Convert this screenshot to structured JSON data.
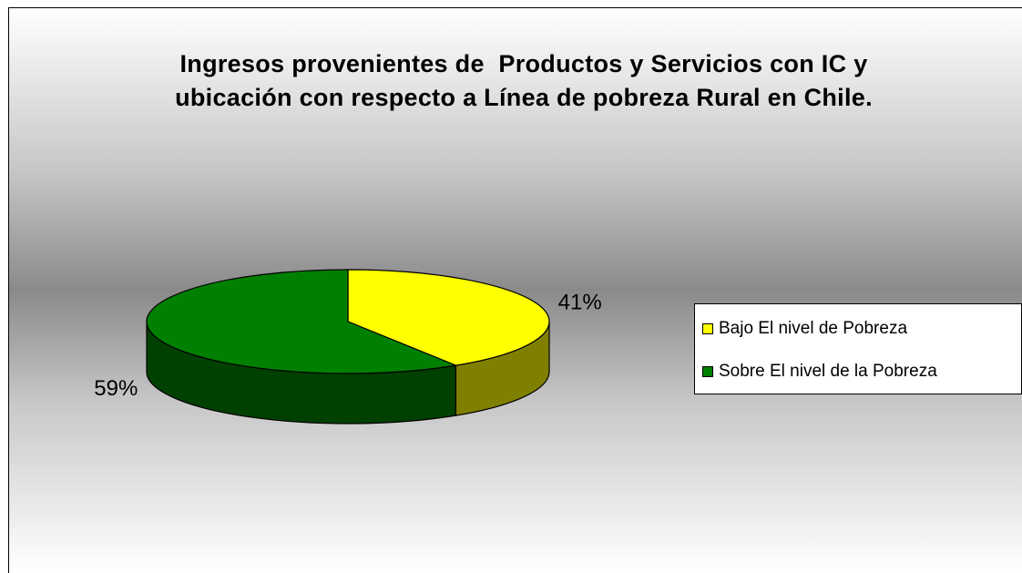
{
  "chart_data": {
    "type": "pie3d",
    "title": "Ingresos provenientes de  Productos y Servicios con IC y ubicación con respecto a Línea de pobreza Rural en Chile.",
    "categories": [
      "Bajo El nivel de Pobreza",
      "Sobre El nivel de la Pobreza"
    ],
    "values": [
      41,
      59
    ],
    "value_labels": [
      "41%",
      "59%"
    ],
    "colors": [
      "#ffff00",
      "#008000"
    ],
    "legend": "right"
  }
}
